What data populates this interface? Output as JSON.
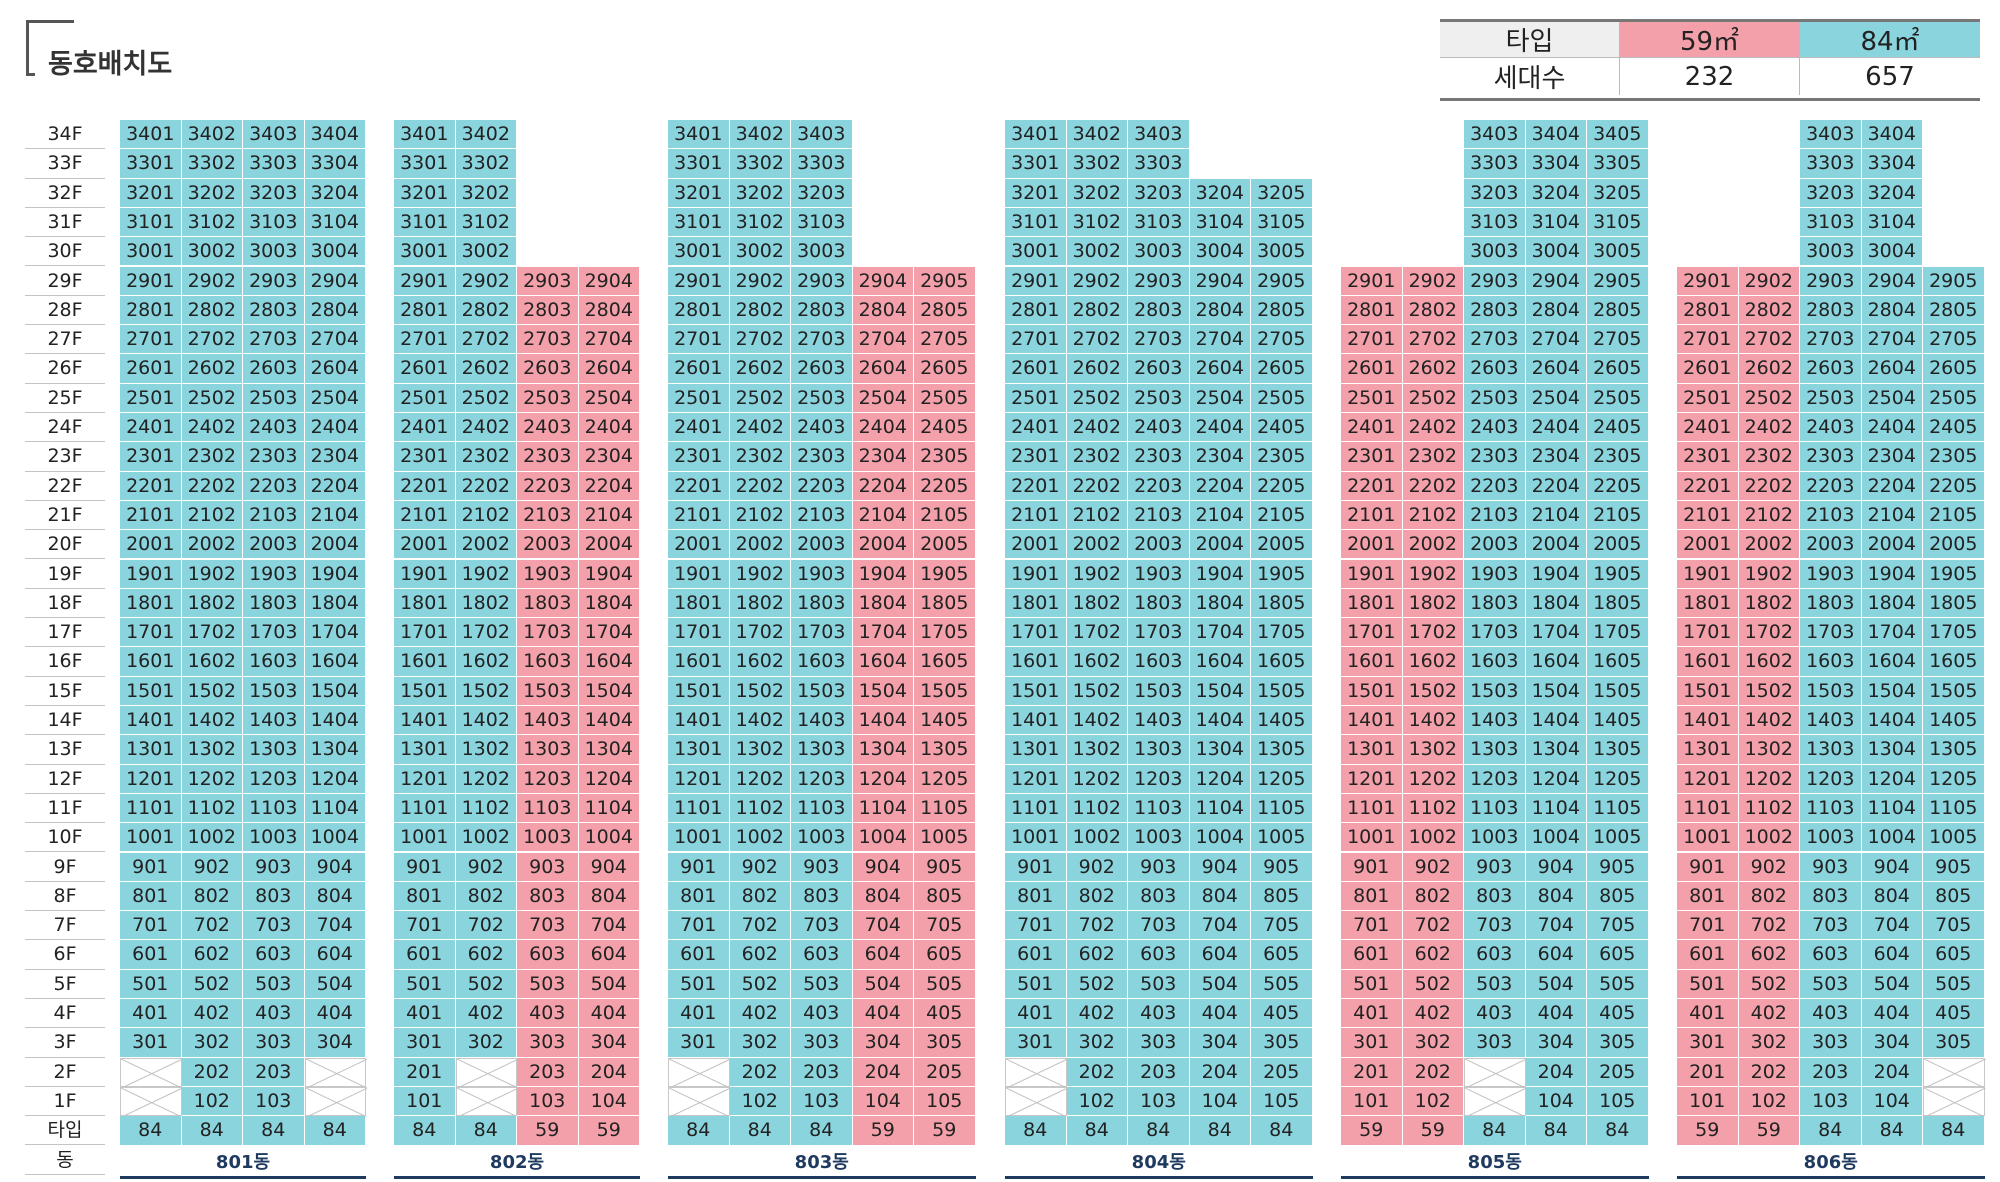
{
  "title": "동호배치도",
  "legend": {
    "header_label": "타입",
    "count_label": "세대수",
    "types": [
      {
        "name": "59㎡",
        "count": "232",
        "color": "#f4a0aa"
      },
      {
        "name": "84㎡",
        "count": "657",
        "color": "#8ad4de"
      }
    ]
  },
  "colors": {
    "t59": "#f4a0aa",
    "t84": "#8ad4de"
  },
  "row_labels": {
    "type": "타입",
    "building": "동"
  },
  "floors": [
    "34F",
    "33F",
    "32F",
    "31F",
    "30F",
    "29F",
    "28F",
    "27F",
    "26F",
    "25F",
    "24F",
    "23F",
    "22F",
    "21F",
    "20F",
    "19F",
    "18F",
    "17F",
    "16F",
    "15F",
    "14F",
    "13F",
    "12F",
    "11F",
    "10F",
    "9F",
    "8F",
    "7F",
    "6F",
    "5F",
    "4F",
    "3F",
    "2F",
    "1F"
  ],
  "buildings": [
    {
      "name": "801동",
      "lines": [
        {
          "line": 1,
          "type": "84",
          "top": 34,
          "voids": [
            1,
            2
          ]
        },
        {
          "line": 2,
          "type": "84",
          "top": 34,
          "voids": []
        },
        {
          "line": 3,
          "type": "84",
          "top": 34,
          "voids": []
        },
        {
          "line": 4,
          "type": "84",
          "top": 34,
          "voids": [
            1,
            2
          ]
        }
      ]
    },
    {
      "name": "802동",
      "lines": [
        {
          "line": 1,
          "type": "84",
          "top": 34,
          "voids": []
        },
        {
          "line": 2,
          "type": "84",
          "top": 34,
          "voids": [
            1,
            2
          ]
        },
        {
          "line": 3,
          "type": "59",
          "top": 29,
          "voids": []
        },
        {
          "line": 4,
          "type": "59",
          "top": 29,
          "voids": []
        }
      ]
    },
    {
      "name": "803동",
      "lines": [
        {
          "line": 1,
          "type": "84",
          "top": 34,
          "voids": [
            1,
            2
          ]
        },
        {
          "line": 2,
          "type": "84",
          "top": 34,
          "voids": []
        },
        {
          "line": 3,
          "type": "84",
          "top": 34,
          "voids": []
        },
        {
          "line": 4,
          "type": "59",
          "top": 29,
          "voids": []
        },
        {
          "line": 5,
          "type": "59",
          "top": 29,
          "voids": []
        }
      ]
    },
    {
      "name": "804동",
      "lines": [
        {
          "line": 1,
          "type": "84",
          "top": 34,
          "voids": [
            1,
            2
          ]
        },
        {
          "line": 2,
          "type": "84",
          "top": 34,
          "voids": []
        },
        {
          "line": 3,
          "type": "84",
          "top": 34,
          "voids": []
        },
        {
          "line": 4,
          "type": "84",
          "top": 32,
          "voids": []
        },
        {
          "line": 5,
          "type": "84",
          "top": 32,
          "voids": []
        }
      ]
    },
    {
      "name": "805동",
      "lines": [
        {
          "line": 1,
          "type": "59",
          "top": 29,
          "voids": []
        },
        {
          "line": 2,
          "type": "59",
          "top": 29,
          "voids": []
        },
        {
          "line": 3,
          "type": "84",
          "top": 34,
          "voids": [
            1,
            2
          ]
        },
        {
          "line": 4,
          "type": "84",
          "top": 34,
          "voids": []
        },
        {
          "line": 5,
          "type": "84",
          "top": 34,
          "voids": []
        }
      ]
    },
    {
      "name": "806동",
      "lines": [
        {
          "line": 1,
          "type": "59",
          "top": 29,
          "voids": []
        },
        {
          "line": 2,
          "type": "59",
          "top": 29,
          "voids": []
        },
        {
          "line": 3,
          "type": "84",
          "top": 34,
          "voids": []
        },
        {
          "line": 4,
          "type": "84",
          "top": 34,
          "voids": []
        },
        {
          "line": 5,
          "type": "84",
          "top": 29,
          "voids": [
            1,
            2
          ]
        }
      ]
    }
  ]
}
